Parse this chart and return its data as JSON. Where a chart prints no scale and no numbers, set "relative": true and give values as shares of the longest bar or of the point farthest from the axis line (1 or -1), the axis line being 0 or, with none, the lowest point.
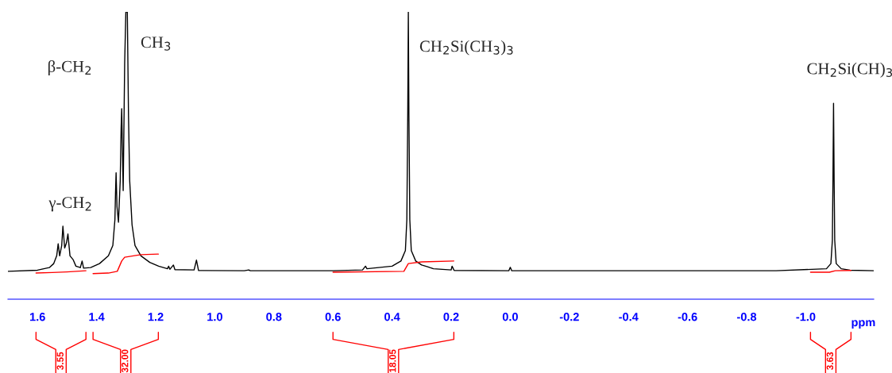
{
  "chart_data": {
    "type": "line",
    "relative": true,
    "xlabel": "ppm",
    "xlim": [
      1.7,
      -1.23
    ],
    "xticks": [
      1.6,
      1.4,
      1.2,
      {
        "value": 1.0,
        "label": "1.0"
      },
      0.8,
      0.6,
      0.4,
      0.2,
      {
        "value": 0.0,
        "label": "0.0"
      },
      -0.2,
      -0.4,
      -0.6,
      -0.8,
      {
        "value": -1.0,
        "label": "-1.0"
      }
    ],
    "tick_labels": "x",
    "grid": false,
    "legend": false,
    "marker": "none",
    "line_style": "solid",
    "series": [
      {
        "color": "#000000",
        "x": [
          1.7,
          1.6,
          1.56,
          1.545,
          1.535,
          1.53,
          1.525,
          1.518,
          1.514,
          1.508,
          1.502,
          1.497,
          1.49,
          1.479,
          1.47,
          1.455,
          1.449,
          1.444,
          1.42,
          1.39,
          1.36,
          1.345,
          1.338,
          1.336,
          1.334,
          1.331,
          1.326,
          1.32,
          1.317,
          1.315,
          1.313,
          1.31,
          1.305,
          1.301,
          1.296,
          1.292,
          1.288,
          1.28,
          1.27,
          1.25,
          1.22,
          1.19,
          1.16,
          1.156,
          1.152,
          1.14,
          1.135,
          1.07,
          1.062,
          1.055,
          0.9,
          0.885,
          0.88,
          0.6,
          0.5,
          0.49,
          0.485,
          0.4,
          0.37,
          0.355,
          0.35,
          0.347,
          0.345,
          0.343,
          0.34,
          0.335,
          0.32,
          0.3,
          0.28,
          0.272,
          0.26,
          0.2,
          0.197,
          0.19,
          0.005,
          0.0,
          -0.005,
          -0.5,
          -0.9,
          -1.07,
          -1.085,
          -1.09,
          -1.092,
          -1.094,
          -1.096,
          -1.098,
          -1.103,
          -1.12,
          -1.15,
          -1.23
        ],
        "values": [
          0.097,
          0.101,
          0.11,
          0.124,
          0.151,
          0.193,
          0.151,
          0.187,
          0.254,
          0.178,
          0.196,
          0.227,
          0.151,
          0.137,
          0.115,
          0.11,
          0.133,
          0.108,
          0.11,
          0.124,
          0.151,
          0.187,
          0.277,
          0.368,
          0.44,
          0.323,
          0.268,
          0.413,
          0.594,
          0.663,
          0.548,
          0.378,
          0.819,
          1.0,
          1.0,
          0.639,
          0.413,
          0.259,
          0.187,
          0.151,
          0.128,
          0.115,
          0.106,
          0.115,
          0.104,
          0.119,
          0.103,
          0.102,
          0.136,
          0.1,
          0.099,
          0.102,
          0.099,
          0.099,
          0.102,
          0.115,
          0.106,
          0.115,
          0.133,
          0.169,
          0.277,
          0.639,
          1.0,
          0.639,
          0.277,
          0.169,
          0.133,
          0.119,
          0.113,
          0.11,
          0.106,
          0.102,
          0.115,
          0.1,
          0.099,
          0.111,
          0.099,
          0.099,
          0.099,
          0.106,
          0.124,
          0.205,
          0.413,
          0.682,
          0.413,
          0.205,
          0.124,
          0.106,
          0.101,
          0.099
        ]
      },
      {
        "color": "#ff0000",
        "x": [
          1.605,
          1.55,
          1.5,
          1.436
        ],
        "values": [
          0.091,
          0.093,
          0.095,
          0.099
        ]
      },
      {
        "color": "#ff0000",
        "x": [
          1.412,
          1.36,
          1.33,
          1.315,
          1.305,
          1.25,
          1.191
        ],
        "values": [
          0.089,
          0.091,
          0.097,
          0.133,
          0.146,
          0.155,
          0.157
        ]
      },
      {
        "color": "#ff0000",
        "x": [
          0.6,
          0.36,
          0.345,
          0.3,
          0.191
        ],
        "values": [
          0.094,
          0.097,
          0.124,
          0.13,
          0.133
        ]
      },
      {
        "color": "#ff0000",
        "x": [
          -1.016,
          -1.08,
          -1.1,
          -1.153
        ],
        "values": [
          0.094,
          0.094,
          0.099,
          0.1
        ]
      }
    ],
    "annotations": [
      {
        "text": "γ-CH$_{2}$",
        "x": 1.514,
        "y": 0.254
      },
      {
        "text": "β-CH$_{2}$",
        "x": 1.315,
        "y": 0.663
      },
      {
        "text": "CH$_{3}$",
        "x": 1.296,
        "y": 0.889
      },
      {
        "text": "CH$_{2}$Si(CH$_{3}$)$_{3}$",
        "x": 0.345,
        "y": 0.875
      },
      {
        "text": "CH$_{2}$Si(CH)$_{3}$",
        "x": -1.094,
        "y": 0.682
      },
      "3.55",
      "32.00",
      "18.05",
      "3.63"
    ]
  }
}
